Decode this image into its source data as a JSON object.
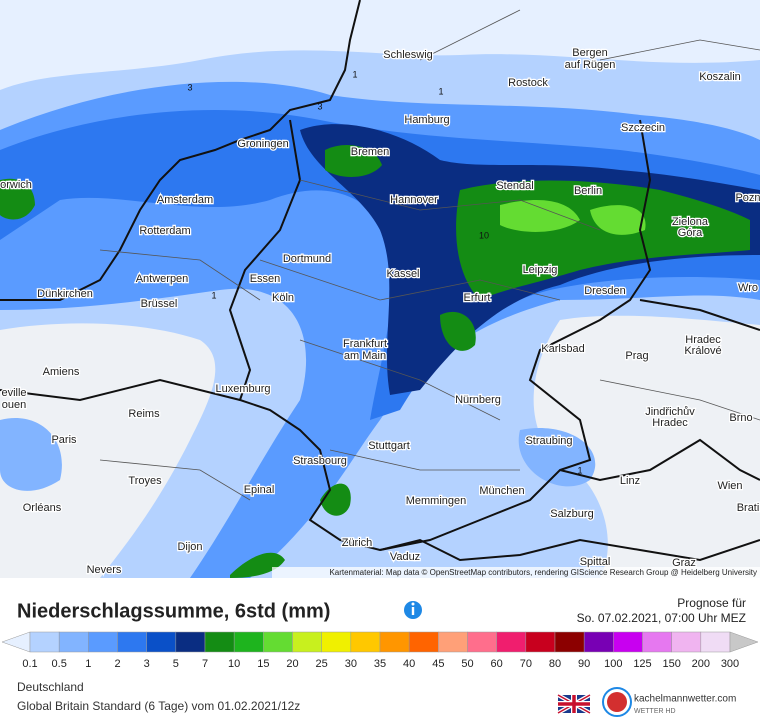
{
  "map": {
    "cities": [
      "Schleswig",
      "Bergen",
      "auf Rügen",
      "Koszalin",
      "Rostock",
      "Hamburg",
      "Szczecin",
      "Groningen",
      "Bremen",
      "orwich",
      "Amsterdam",
      "Hannover",
      "Stendal",
      "Berlin",
      "Pozn",
      "Zielona",
      "Góra",
      "Rotterdam",
      "Dortmund",
      "Kassel",
      "Leipzig",
      "Antwerpen",
      "Essen",
      "Dünkirchen",
      "Brüssel",
      "Köln",
      "Erfurt",
      "Dresden",
      "Wro",
      "Frankfurt",
      "am Main",
      "Karlsbad",
      "Hradec",
      "Králové",
      "Prag",
      "Amiens",
      "Luxemburg",
      "eville",
      "ouen",
      "Nürnberg",
      "Jindřichův",
      "Hradec",
      "Brno",
      "Reims",
      "Paris",
      "Stuttgart",
      "Straubing",
      "Troyes",
      "Strasbourg",
      "Linz",
      "Wien",
      "München",
      "Epinal",
      "Memmingen",
      "Brati",
      "Orléans",
      "Salzburg",
      "Zürich",
      "Dijon",
      "Vaduz",
      "Spittal",
      "Nevers",
      "Graz"
    ],
    "contour_labels": [
      "3",
      "1",
      "3",
      "1",
      "10",
      "1",
      "1"
    ],
    "attribution": "Kartenmaterial: Map data © OpenStreetMap contributors, rendering GIScience Research Group @ Heidelberg University"
  },
  "header": {
    "title": "Niederschlagssumme, 6std (mm)",
    "forecast_label": "Prognose für",
    "forecast_time": "So. 07.02.2021, 07:00 Uhr MEZ"
  },
  "legend": {
    "levels": [
      "0.1",
      "0.5",
      "1",
      "2",
      "3",
      "5",
      "7",
      "10",
      "15",
      "20",
      "25",
      "30",
      "35",
      "40",
      "45",
      "50",
      "60",
      "70",
      "80",
      "90",
      "100",
      "125",
      "150",
      "200",
      "300"
    ],
    "colors": [
      "#e6f0ff",
      "#b4d2ff",
      "#82b4ff",
      "#5a9bff",
      "#2d78f0",
      "#0a50c8",
      "#0a2d82",
      "#148c14",
      "#1eb41e",
      "#64dc32",
      "#c8f01e",
      "#f0f000",
      "#ffc800",
      "#ff9600",
      "#ff6400",
      "#ffa078",
      "#ff6e8c",
      "#f01e6e",
      "#c8001e",
      "#8c0000",
      "#7800b4",
      "#c800f0",
      "#e678f0",
      "#f0b4f0",
      "#f0dcf5",
      "#c8c8c8"
    ]
  },
  "footer": {
    "region": "Deutschland",
    "model": "Global Britain Standard  (6 Tage) vom 01.02.2021/12z",
    "brand": "kachelmannwetter.com",
    "brand_sub": "WETTER HD"
  }
}
